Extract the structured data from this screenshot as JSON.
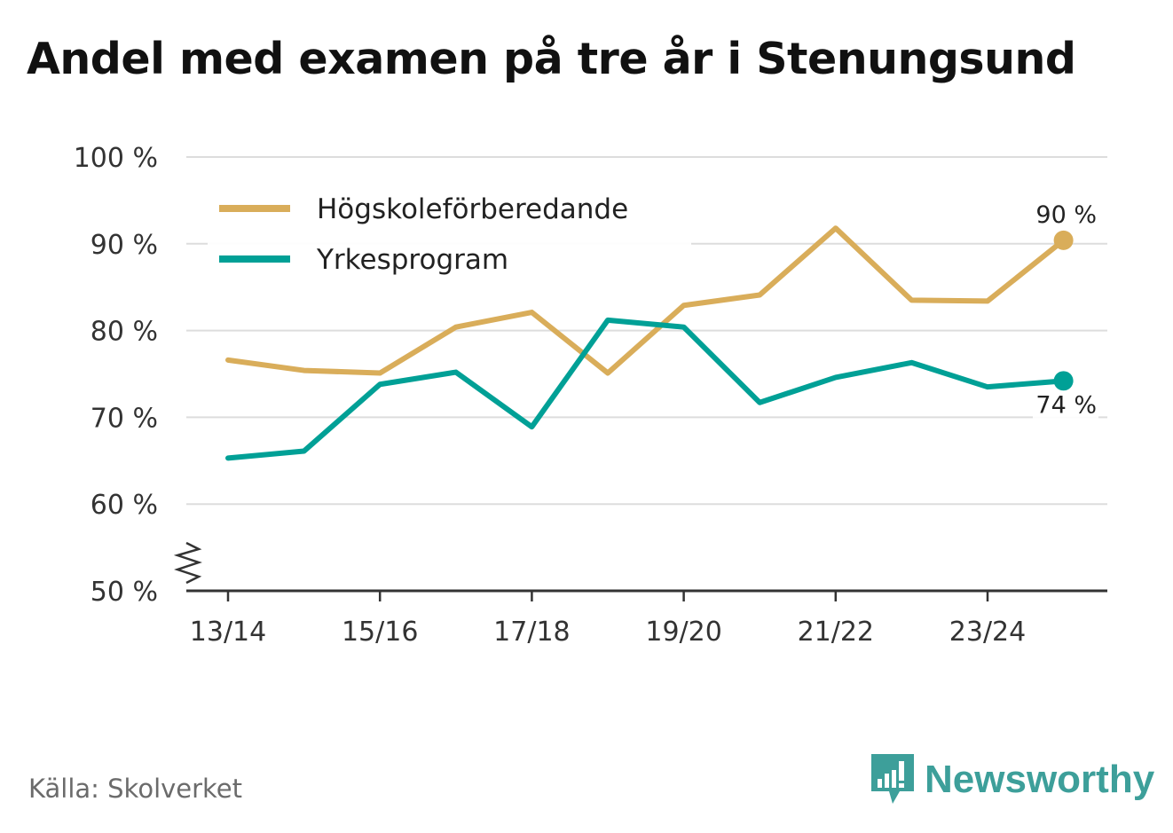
{
  "chart_data": {
    "type": "line",
    "title": "Andel med examen på tre år i Stenungsund",
    "categories": [
      "13/14",
      "14/15",
      "15/16",
      "16/17",
      "17/18",
      "18/19",
      "19/20",
      "20/21",
      "21/22",
      "22/23",
      "23/24",
      "24/25"
    ],
    "x_tick_labels": [
      "13/14",
      "15/16",
      "17/18",
      "19/20",
      "21/22",
      "23/24"
    ],
    "y_tick_values": [
      50,
      60,
      70,
      80,
      90,
      100
    ],
    "y_tick_suffix": " %",
    "ylim": [
      50,
      100
    ],
    "axis_break": true,
    "grid": true,
    "legend_position": "top-left",
    "series": [
      {
        "name": "Högskoleförberedande",
        "color": "#d9ad5a",
        "values": [
          76.6,
          75.4,
          75.1,
          80.4,
          82.1,
          75.1,
          82.9,
          84.1,
          91.8,
          83.5,
          83.4,
          90.4
        ],
        "end_label": "90 %"
      },
      {
        "name": "Yrkesprogram",
        "color": "#00a096",
        "values": [
          65.3,
          66.1,
          73.8,
          75.2,
          68.9,
          81.2,
          80.4,
          71.7,
          74.6,
          76.3,
          73.5,
          74.2
        ],
        "end_label": "74 %"
      }
    ],
    "xlabel": "",
    "ylabel": ""
  },
  "footer": {
    "source": "Källa: Skolverket",
    "brand": "Newsworthy"
  },
  "colors": {
    "grid": "#dddddd",
    "axis": "#333333",
    "brand": "#3d9f9a"
  },
  "icons": {
    "brand_logo": "bar-chart-speech-bubble-icon"
  }
}
